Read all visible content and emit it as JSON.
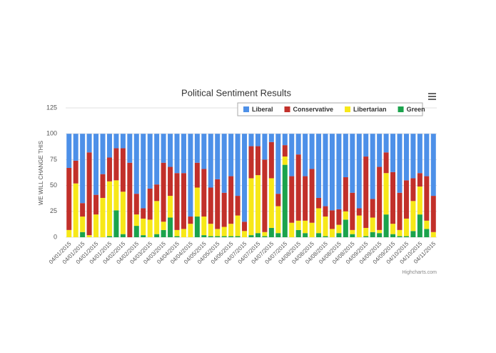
{
  "chart_data": {
    "type": "stacked_bar",
    "title": "Political Sentiment Results",
    "y_label": "WE WILL CHANGE THIS",
    "credits": "Highcharts.com",
    "categories": [
      "04/01/2015",
      null,
      "04/01/2015",
      null,
      "04/01/2015",
      null,
      "04/01/2015",
      null,
      "04/02/2015",
      null,
      "04/02/2015",
      null,
      "04/03/2015",
      null,
      "04/03/2015",
      null,
      "04/04/2015",
      null,
      "04/04/2015",
      null,
      "04/05/2015",
      null,
      "04/05/2015",
      null,
      "04/06/2015",
      null,
      "04/07/2015",
      null,
      "04/07/2015",
      null,
      "04/07/2015",
      null,
      "04/07/2015",
      null,
      "04/08/2015",
      null,
      "04/08/2015",
      null,
      "04/08/2015",
      null,
      "04/08/2015",
      null,
      "04/08/2015",
      null,
      "04/09/2015",
      null,
      "04/09/2015",
      null,
      "04/09/2015",
      null,
      "04/10/2015",
      null,
      "04/10/2015",
      null,
      "04/11/2015"
    ],
    "series": [
      {
        "name": "Liberal",
        "color": "#4d90e8",
        "values": [
          33,
          26,
          67,
          18,
          59,
          39,
          23,
          14,
          14,
          28,
          58,
          72,
          53,
          49,
          28,
          32,
          38,
          38,
          80,
          28,
          34,
          52,
          44,
          57,
          41,
          60,
          85,
          12,
          12,
          25,
          8,
          58,
          11,
          41,
          20,
          41,
          34,
          62,
          70,
          74,
          73,
          42,
          57,
          72,
          22,
          63,
          32,
          18,
          37,
          57,
          45,
          43,
          38,
          41,
          60
        ]
      },
      {
        "name": "Conservative",
        "color": "#c2302a",
        "values": [
          60,
          22,
          13,
          80,
          19,
          23,
          23,
          31,
          42,
          72,
          20,
          10,
          30,
          16,
          57,
          28,
          55,
          54,
          7,
          24,
          46,
          35,
          48,
          33,
          46,
          19,
          9,
          31,
          28,
          70,
          35,
          12,
          11,
          45,
          64,
          43,
          52,
          10,
          10,
          18,
          15,
          33,
          36,
          7,
          69,
          18,
          61,
          20,
          50,
          36,
          37,
          22,
          13,
          43,
          35
        ]
      },
      {
        "name": "Libertarian",
        "color": "#f7e818",
        "values": [
          7,
          52,
          15,
          2,
          22,
          38,
          53,
          29,
          41,
          0,
          11,
          16,
          17,
          32,
          8,
          21,
          6,
          8,
          13,
          28,
          18,
          12,
          7,
          9,
          12,
          20,
          6,
          55,
          56,
          4,
          48,
          26,
          8,
          14,
          9,
          12,
          14,
          24,
          19,
          8,
          8,
          8,
          4,
          21,
          8,
          14,
          3,
          40,
          10,
          6,
          17,
          29,
          27,
          8,
          5
        ]
      },
      {
        "name": "Green",
        "color": "#1ba34c",
        "values": [
          0,
          0,
          5,
          0,
          0,
          0,
          1,
          26,
          3,
          0,
          11,
          2,
          0,
          3,
          7,
          19,
          1,
          0,
          0,
          20,
          2,
          1,
          1,
          1,
          1,
          1,
          0,
          2,
          4,
          1,
          9,
          4,
          70,
          0,
          7,
          4,
          0,
          4,
          1,
          0,
          4,
          17,
          3,
          0,
          1,
          5,
          4,
          22,
          3,
          1,
          1,
          6,
          22,
          8,
          0
        ]
      }
    ],
    "ylim": [
      0,
      125
    ],
    "yticks": [
      0,
      25,
      50,
      75,
      100,
      125
    ],
    "grid": true,
    "legend": "top-right"
  }
}
